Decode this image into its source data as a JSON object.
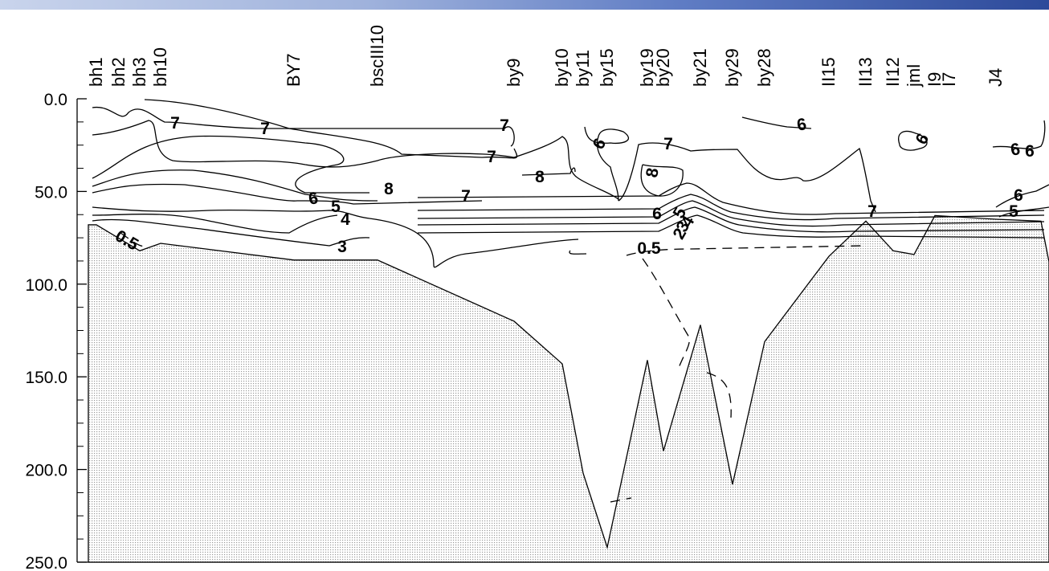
{
  "chart_data": {
    "type": "contour",
    "title": "",
    "xlabel": "",
    "ylabel": "",
    "ylim": [
      0,
      250
    ],
    "y_inverted": true,
    "y_ticks": [
      "0.0",
      "50.0",
      "100.0",
      "150.0",
      "200.0",
      "250.0"
    ],
    "stations": [
      "bh1",
      "bh2",
      "bh3",
      "bh10",
      "BY7",
      "bscIII10",
      "by9",
      "by10",
      "by11",
      "by15",
      "by19",
      "by20",
      "by21",
      "by29",
      "by28",
      "II15",
      "II13",
      "II12",
      "jml",
      "I9",
      "I7",
      "J4"
    ],
    "contour_labels": [
      "7",
      "7",
      "7",
      "7",
      "6",
      "6",
      "7",
      "6",
      "8",
      "8",
      "8",
      "7",
      "6",
      "5",
      "4",
      "3",
      "0.5",
      "6",
      "5",
      "4",
      "3",
      "2",
      "0.5",
      "7",
      "6",
      "5",
      "6",
      "6"
    ],
    "bottom_depth_profile": [
      {
        "station": "bh1",
        "depth": 68
      },
      {
        "station": "bh3",
        "depth": 82
      },
      {
        "station": "bh10",
        "depth": 78
      },
      {
        "station": "BY7",
        "depth": 87
      },
      {
        "station": "bscIII10",
        "depth": 87
      },
      {
        "station": "by9",
        "depth": 120
      },
      {
        "station": "by10",
        "depth": 143
      },
      {
        "station": "by11",
        "depth": 202
      },
      {
        "station": "by15",
        "depth": 242
      },
      {
        "station": "by19",
        "depth": 141
      },
      {
        "station": "by20",
        "depth": 190
      },
      {
        "station": "by21",
        "depth": 122
      },
      {
        "station": "by29",
        "depth": 208
      },
      {
        "station": "by28",
        "depth": 131
      },
      {
        "station": "II15",
        "depth": 85
      },
      {
        "station": "II13",
        "depth": 66
      },
      {
        "station": "II12",
        "depth": 82
      },
      {
        "station": "jml",
        "depth": 84
      },
      {
        "station": "I9",
        "depth": 63
      },
      {
        "station": "J4",
        "depth": 65
      }
    ]
  }
}
